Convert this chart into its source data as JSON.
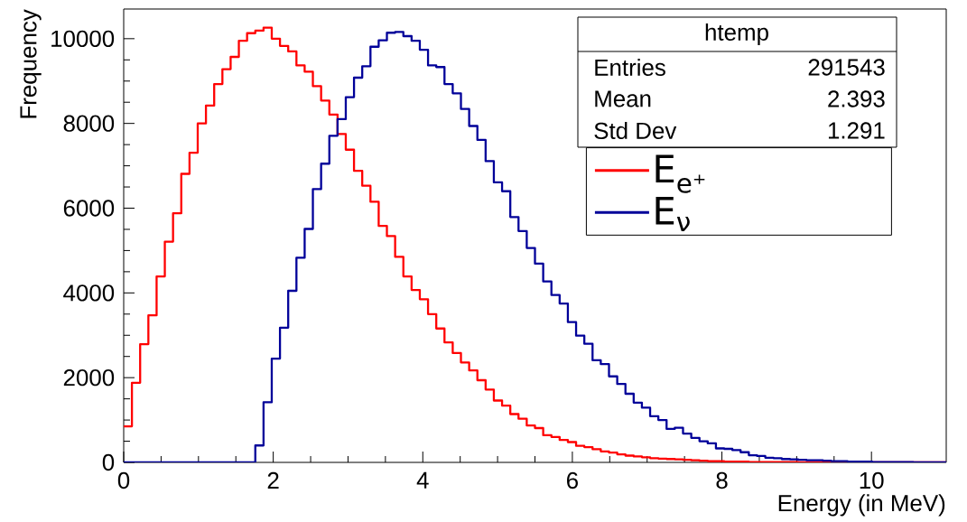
{
  "chart_data": {
    "type": "histogram",
    "xlabel": "Energy (in MeV)",
    "ylabel": "Frequency",
    "bins": [
      0,
      0.11,
      0.22,
      0.33,
      0.44,
      0.55,
      0.66,
      0.77,
      0.88,
      0.99,
      1.1,
      1.21,
      1.32,
      1.43,
      1.54,
      1.65,
      1.76,
      1.87,
      1.98,
      2.09,
      2.2,
      2.31,
      2.42,
      2.53,
      2.64,
      2.75,
      2.86,
      2.97,
      3.08,
      3.19,
      3.3,
      3.41,
      3.52,
      3.63,
      3.74,
      3.85,
      3.96,
      4.07,
      4.18,
      4.29,
      4.4,
      4.51,
      4.62,
      4.73,
      4.84,
      4.95,
      5.06,
      5.17,
      5.28,
      5.39,
      5.5,
      5.61,
      5.72,
      5.83,
      5.94,
      6.05,
      6.16,
      6.27,
      6.38,
      6.49,
      6.6,
      6.71,
      6.82,
      6.93,
      7.04,
      7.15,
      7.26,
      7.37,
      7.48,
      7.59,
      7.7,
      7.81,
      7.92,
      8.03,
      8.14,
      8.25,
      8.36,
      8.47,
      8.58,
      8.69,
      8.8,
      8.91,
      9.02,
      9.13,
      9.24,
      9.35,
      9.46,
      9.57,
      9.68,
      9.79,
      9.9,
      10.01,
      10.12,
      10.23,
      10.34,
      10.45,
      10.56,
      10.67,
      10.78,
      10.89,
      11
    ],
    "series": [
      {
        "name": "E$_{e⁺}$",
        "color": "#ff0000",
        "values": [
          850,
          1880,
          2790,
          3470,
          4390,
          5210,
          5880,
          6810,
          7310,
          8000,
          8420,
          8930,
          9280,
          9570,
          9950,
          10130,
          10190,
          10260,
          10000,
          9830,
          9700,
          9370,
          9220,
          8880,
          8540,
          8210,
          7750,
          7380,
          6880,
          6530,
          6150,
          5580,
          5340,
          4850,
          4390,
          4070,
          3850,
          3500,
          3160,
          2830,
          2580,
          2360,
          2170,
          1940,
          1720,
          1460,
          1340,
          1140,
          1030,
          870,
          810,
          640,
          600,
          530,
          480,
          390,
          360,
          310,
          260,
          230,
          190,
          160,
          140,
          120,
          100,
          90,
          80,
          70,
          60,
          50,
          40,
          30,
          30,
          20,
          20,
          20,
          10,
          10,
          10,
          10,
          10,
          10,
          0,
          0,
          0,
          0,
          0,
          0,
          0,
          0,
          0,
          0,
          0,
          0,
          0,
          0,
          0,
          0,
          0,
          0
        ]
      },
      {
        "name": "E$_{ν}$",
        "color": "#000099",
        "values": [
          0,
          0,
          0,
          0,
          0,
          0,
          0,
          0,
          0,
          0,
          0,
          0,
          0,
          0,
          0,
          0,
          400,
          1420,
          2450,
          3180,
          4050,
          4830,
          5510,
          6450,
          7050,
          7710,
          8100,
          8620,
          9080,
          9350,
          9810,
          9960,
          10140,
          10160,
          10060,
          9950,
          9740,
          9370,
          9330,
          8930,
          8710,
          8340,
          7940,
          7610,
          7110,
          6610,
          6400,
          5790,
          5460,
          5060,
          4690,
          4270,
          3950,
          3750,
          3310,
          2990,
          2800,
          2410,
          2320,
          2030,
          1850,
          1620,
          1410,
          1290,
          1090,
          1000,
          790,
          820,
          680,
          580,
          500,
          450,
          330,
          320,
          290,
          240,
          170,
          150,
          110,
          100,
          80,
          70,
          60,
          50,
          50,
          40,
          30,
          30,
          20,
          20,
          20,
          10,
          10,
          10,
          10,
          10,
          0,
          0,
          0,
          0
        ]
      }
    ],
    "xlim": [
      0,
      11
    ],
    "xticks": [
      0,
      2,
      4,
      6,
      8,
      10
    ],
    "ylim": [
      0,
      10700
    ],
    "yticks": [
      0,
      2000,
      4000,
      6000,
      8000,
      10000
    ],
    "legend": "top right",
    "annotations": [
      "htemp",
      "Entries",
      "291543",
      "Mean",
      "2.393",
      "Std Dev",
      "1.291"
    ]
  }
}
